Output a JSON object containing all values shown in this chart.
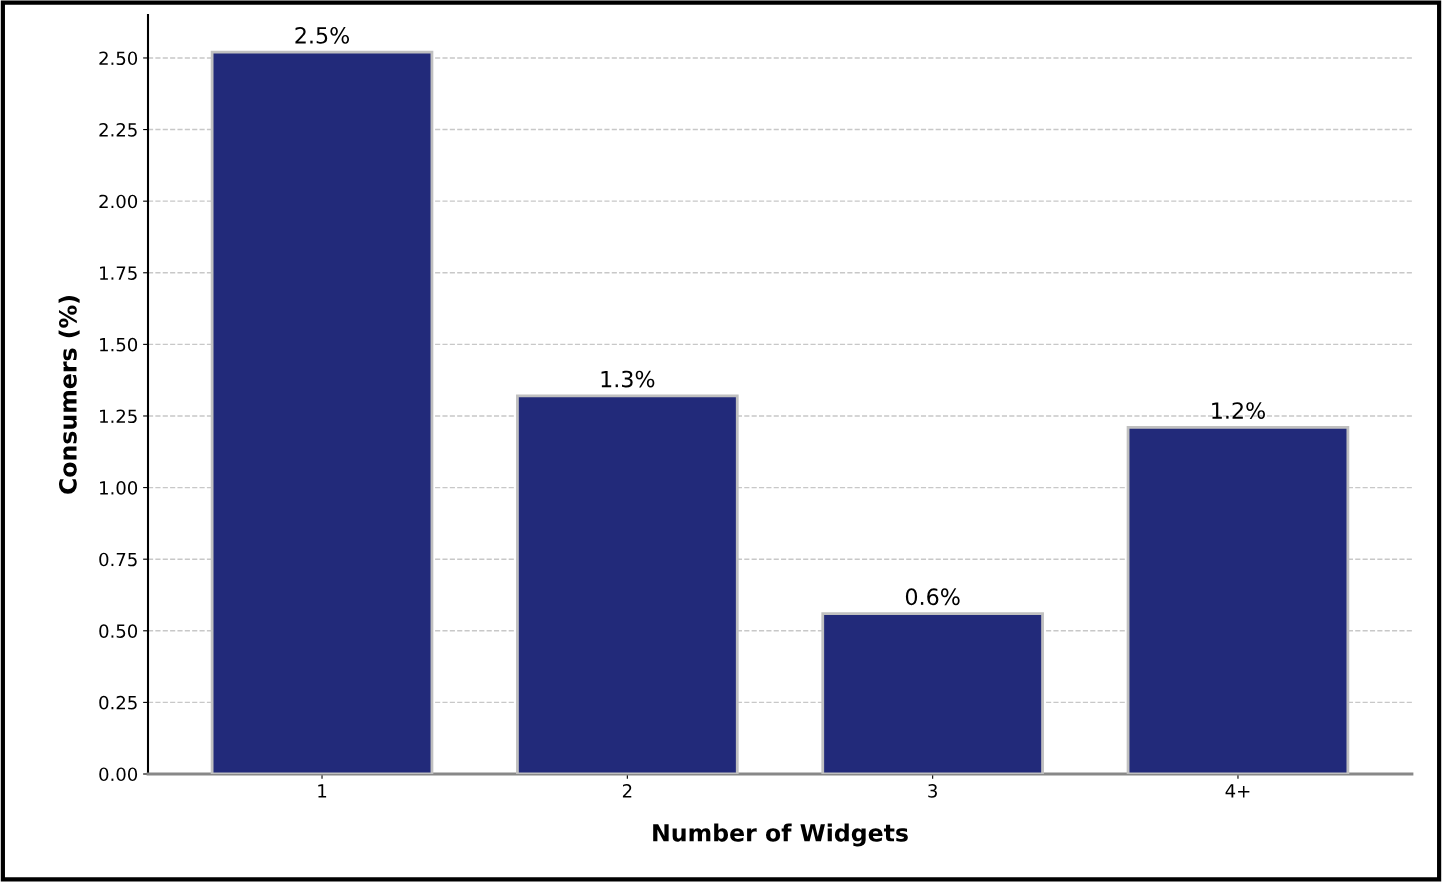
{
  "chart_data": {
    "type": "bar",
    "xlabel": "Number of Widgets",
    "ylabel": "Consumers (%)",
    "categories": [
      "1",
      "2",
      "3",
      "4+"
    ],
    "values": [
      2.52,
      1.32,
      0.56,
      1.21
    ],
    "value_labels": [
      "2.5%",
      "1.3%",
      "0.6%",
      "1.2%"
    ],
    "color": "#222a7a",
    "ylim": [
      0,
      2.65
    ],
    "yticks": [
      {
        "value": 0,
        "label": "0.00"
      },
      {
        "value": 0.25,
        "label": "0.25"
      },
      {
        "value": 0.5,
        "label": "0.50"
      },
      {
        "value": 0.75,
        "label": "0.75"
      },
      {
        "value": 1,
        "label": "1.00"
      },
      {
        "value": 1.25,
        "label": "1.25"
      },
      {
        "value": 1.5,
        "label": "1.50"
      },
      {
        "value": 1.75,
        "label": "1.75"
      },
      {
        "value": 2,
        "label": "2.00"
      },
      {
        "value": 2.25,
        "label": "2.25"
      },
      {
        "value": 2.5,
        "label": "2.50"
      }
    ],
    "grid": "y",
    "legend": false
  }
}
